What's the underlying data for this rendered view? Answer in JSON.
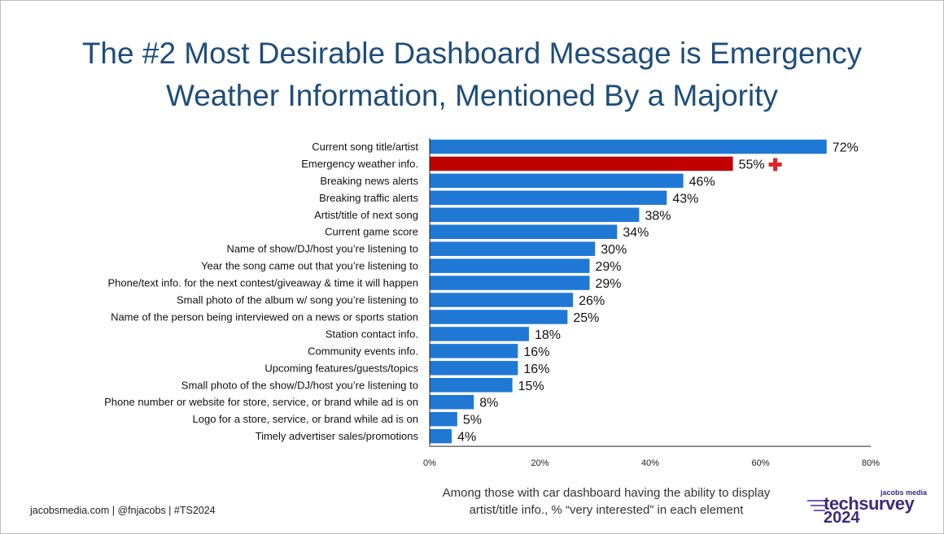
{
  "title": "The #2 Most Desirable Dashboard Message is Emergency Weather Information, Mentioned By a Majority",
  "footer": "jacobsmedia.com  |  @fnjacobs  |  #TS2024",
  "caption_line1": "Among those with car dashboard having the ability to display",
  "caption_line2": "artist/title info., % “very interested” in each element",
  "brand": {
    "small": "jacobs media",
    "main": "techsurvey",
    "year": "2024"
  },
  "colors": {
    "bar": "#1f78d4",
    "highlight": "#c00000",
    "title": "#1f4e79",
    "plus": "#e0202a"
  },
  "chart_data": {
    "type": "bar",
    "orientation": "horizontal",
    "categories": [
      "Current song title/artist",
      "Emergency weather info.",
      "Breaking news alerts",
      "Breaking traffic alerts",
      "Artist/title of next song",
      "Current game score",
      "Name of show/DJ/host you’re listening to",
      "Year the song came out that you’re listening to",
      "Phone/text info. for the next contest/giveaway & time it will happen",
      "Small photo of the album w/ song you’re listening to",
      "Name of the person being interviewed on a news or sports station",
      "Station contact info.",
      "Community events info.",
      "Upcoming features/guests/topics",
      "Small photo of the show/DJ/host you’re listening to",
      "Phone number or website for store, service, or brand while ad is on",
      "Logo for a store, service, or brand while ad is on",
      "Timely advertiser sales/promotions"
    ],
    "values": [
      72,
      55,
      46,
      43,
      38,
      34,
      30,
      29,
      29,
      26,
      25,
      18,
      16,
      16,
      15,
      8,
      5,
      4
    ],
    "data_labels": [
      "72%",
      "55%",
      "46%",
      "43%",
      "38%",
      "34%",
      "30%",
      "29%",
      "29%",
      "26%",
      "25%",
      "18%",
      "16%",
      "16%",
      "15%",
      "8%",
      "5%",
      "4%"
    ],
    "highlight_index": 1,
    "highlight_marker": "plus-icon",
    "xlim": [
      0,
      80
    ],
    "xticks": [
      "0%",
      "20%",
      "40%",
      "60%",
      "80%"
    ],
    "xtick_values": [
      0,
      20,
      40,
      60,
      80
    ],
    "grid": false
  }
}
